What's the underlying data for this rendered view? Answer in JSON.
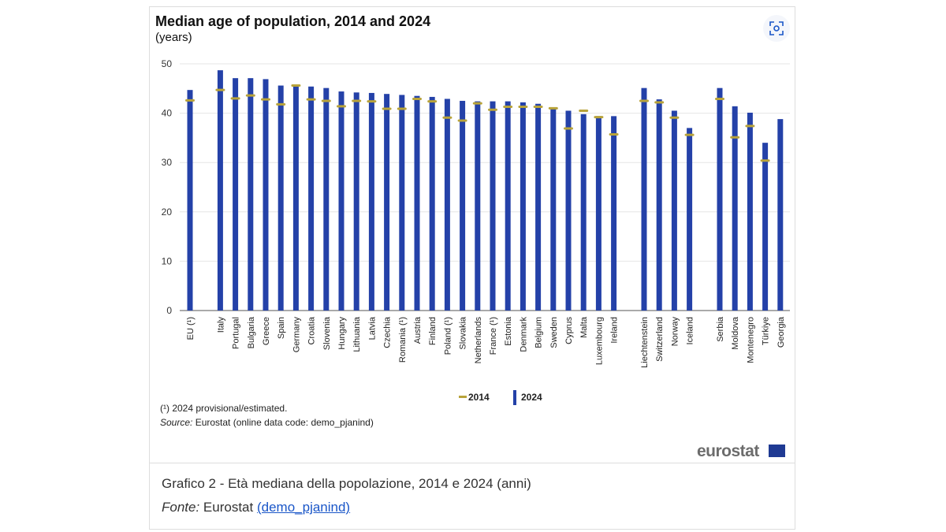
{
  "header": {
    "title": "Median age of population, 2014 and 2024",
    "subtitle": "(years)"
  },
  "footnote": "(¹) 2024 provisional/estimated.",
  "source": {
    "label": "Source:",
    "text": " Eurostat (online data code: demo_pjanind)"
  },
  "logo": "eurostat",
  "caption": {
    "text": "Grafico 2 - Età mediana della popolazione, 2014 e 2024 (anni)",
    "fonte_label": "Fonte:",
    "fonte_text": " Eurostat ",
    "link": "(demo_pjanind)"
  },
  "colors": {
    "bar": "#2441a8",
    "marker": "#b8a33a"
  },
  "chart_data": {
    "type": "bar",
    "title": "Median age of population, 2014 and 2024",
    "ylabel": "years",
    "ylim": [
      0,
      50
    ],
    "yticks": [
      0,
      10,
      20,
      30,
      40,
      50
    ],
    "grid": true,
    "legend": "bottom",
    "categories": [
      "EU (¹)",
      null,
      "Italy",
      "Portugal",
      "Bulgaria",
      "Greece",
      "Spain",
      "Germany",
      "Croatia",
      "Slovenia",
      "Hungary",
      "Lithuania",
      "Latvia",
      "Czechia",
      "Romania (¹)",
      "Austria",
      "Finland",
      "Poland (¹)",
      "Slovakia",
      "Netherlands",
      "France (¹)",
      "Estonia",
      "Denmark",
      "Belgium",
      "Sweden",
      "Cyprus",
      "Malta",
      "Luxembourg",
      "Ireland",
      null,
      "Liechtenstein",
      "Switzerland",
      "Norway",
      "Iceland",
      null,
      "Serbia",
      "Moldova",
      "Montenegro",
      "Türkiye",
      "Georgia"
    ],
    "series": [
      {
        "name": "2014",
        "style": "marker",
        "values": [
          42.6,
          null,
          44.7,
          43.0,
          43.6,
          42.8,
          41.8,
          45.6,
          42.8,
          42.5,
          41.4,
          42.5,
          42.4,
          40.9,
          40.9,
          42.9,
          42.4,
          39.1,
          38.5,
          42.0,
          40.7,
          41.3,
          41.3,
          41.3,
          41.0,
          36.9,
          40.5,
          39.2,
          35.7,
          null,
          42.5,
          42.2,
          39.1,
          35.6,
          null,
          42.9,
          35.1,
          37.4,
          30.4,
          null
        ]
      },
      {
        "name": "2024",
        "style": "bar",
        "values": [
          44.7,
          null,
          48.7,
          47.1,
          47.1,
          46.9,
          45.6,
          45.5,
          45.4,
          45.1,
          44.4,
          44.2,
          44.1,
          43.9,
          43.7,
          43.5,
          43.3,
          42.9,
          42.5,
          42.4,
          42.4,
          42.4,
          42.2,
          41.9,
          40.9,
          40.5,
          39.8,
          39.4,
          39.4,
          null,
          45.1,
          42.8,
          40.5,
          37.0,
          null,
          45.1,
          41.4,
          40.1,
          34.0,
          38.8
        ]
      }
    ]
  }
}
